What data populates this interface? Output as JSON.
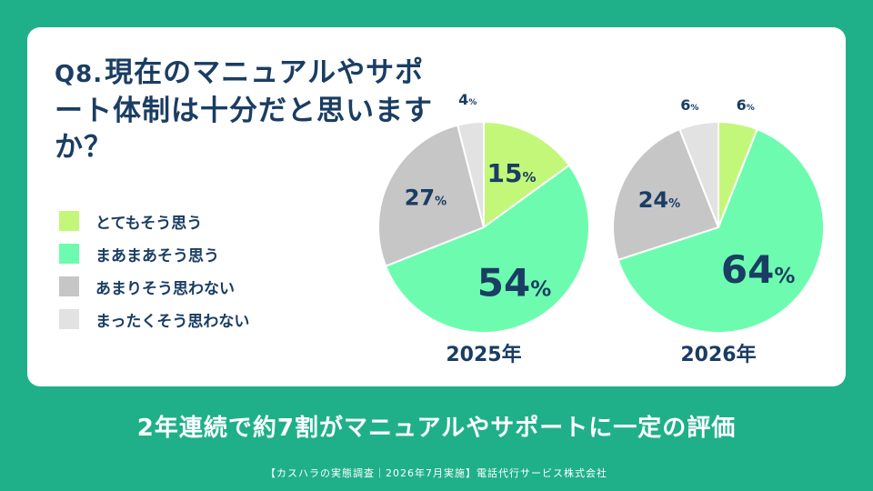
{
  "question": {
    "number": "Q8.",
    "text": "現在のマニュアルやサポート体制は十分だと思いますか？"
  },
  "legend": [
    {
      "label": "とてもそう思う",
      "color": "#c3f77a"
    },
    {
      "label": "まあまあそう思う",
      "color": "#6dfcaf"
    },
    {
      "label": "あまりそう思わない",
      "color": "#c6c6c6"
    },
    {
      "label": "まったくそう思わない",
      "color": "#e2e2e2"
    }
  ],
  "chart_data": [
    {
      "type": "pie",
      "title": "2025年",
      "categories": [
        "とてもそう思う",
        "まあまあそう思う",
        "あまりそう思わない",
        "まったくそう思わない"
      ],
      "values": [
        15,
        54,
        27,
        4
      ],
      "unit": "%"
    },
    {
      "type": "pie",
      "title": "2026年",
      "categories": [
        "とてもそう思う",
        "まあまあそう思う",
        "あまりそう思わない",
        "まったくそう思わない"
      ],
      "values": [
        6,
        64,
        24,
        6
      ],
      "unit": "%"
    }
  ],
  "footer": {
    "message": "2年連続で約7割がマニュアルやサポートに一定の評価",
    "source": "【カスハラの実態調査｜2026年7月実施】電話代行サービス株式会社"
  }
}
